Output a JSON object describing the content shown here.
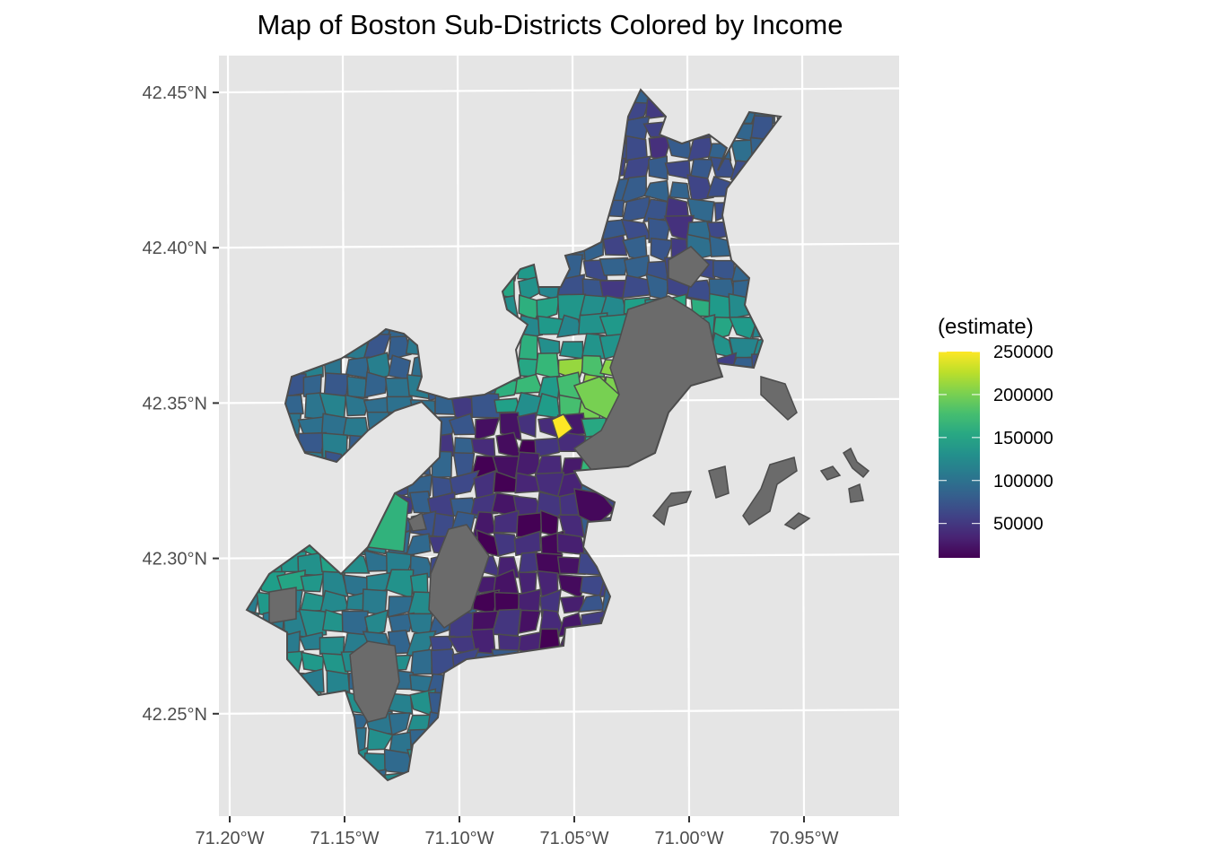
{
  "title": "Map of Boston Sub-Districts Colored by Income",
  "chart_data": {
    "type": "choropleth",
    "title": "Map of Boston Sub-Districts Colored by Income",
    "x_ticks": [
      "71.20°W",
      "71.15°W",
      "71.10°W",
      "71.05°W",
      "71.00°W",
      "70.95°W"
    ],
    "y_ticks": [
      "42.45°N",
      "42.40°N",
      "42.35°N",
      "42.30°N",
      "42.25°N"
    ],
    "legend": {
      "title": "(estimate)",
      "ticks": [
        "250000",
        "200000",
        "150000",
        "100000",
        "50000"
      ],
      "tick_values": [
        250000,
        200000,
        150000,
        100000,
        50000
      ],
      "range": [
        10000,
        250000
      ],
      "palette": "viridis",
      "placement": "right"
    },
    "na_color": "#6b6b6b",
    "panel_background": "#e5e5e5",
    "grid": true
  }
}
